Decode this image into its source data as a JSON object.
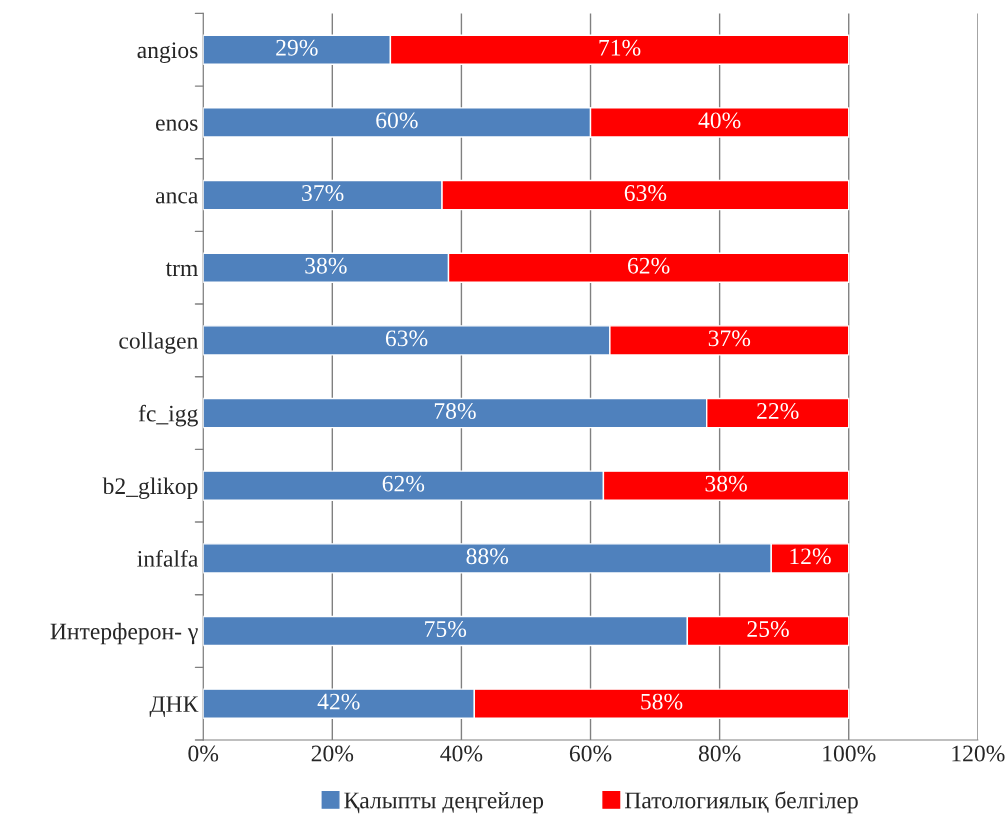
{
  "chart_data": {
    "type": "bar",
    "orientation": "horizontal",
    "stacked": true,
    "categories": [
      "angios",
      "enos",
      "anca",
      "trm",
      "collagen",
      "fc_igg",
      "b2_glikop",
      "infalfa",
      "Интерферон- γ",
      "ДНК"
    ],
    "series": [
      {
        "name": "Қалыпты деңгейлер",
        "color": "#4f81bd",
        "values": [
          29,
          60,
          37,
          38,
          63,
          78,
          62,
          88,
          75,
          42
        ],
        "value_labels": [
          "29%",
          "60%",
          "37%",
          "38%",
          "63%",
          "78%",
          "62%",
          "88%",
          "75%",
          "42%"
        ]
      },
      {
        "name": "Патологиялық белгілер",
        "color": "#ff0000",
        "values": [
          71,
          40,
          63,
          62,
          37,
          22,
          38,
          12,
          25,
          58
        ],
        "value_labels": [
          "71%",
          "40%",
          "63%",
          "62%",
          "37%",
          "22%",
          "38%",
          "12%",
          "25%",
          "58%"
        ]
      }
    ],
    "xlim": [
      0,
      120
    ],
    "xticks": [
      {
        "value": 0,
        "label": "0%"
      },
      {
        "value": 20,
        "label": "20%"
      },
      {
        "value": 40,
        "label": "40%"
      },
      {
        "value": 60,
        "label": "60%"
      },
      {
        "value": 80,
        "label": "80%"
      },
      {
        "value": 100,
        "label": "100%"
      },
      {
        "value": 120,
        "label": "120%"
      }
    ],
    "grid": "x",
    "legend": "bottom"
  }
}
